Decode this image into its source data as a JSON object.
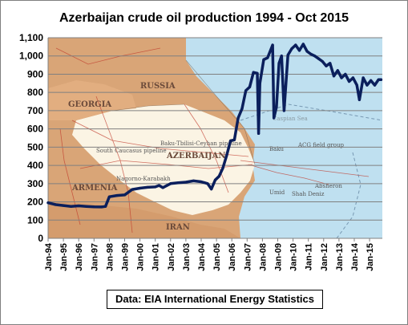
{
  "chart_data": {
    "type": "line",
    "title": "Azerbaijan crude oil production 1994 - Oct 2015",
    "xlabel": "",
    "ylabel": "",
    "ylim": [
      0,
      1100
    ],
    "yticks": [
      0,
      100,
      200,
      300,
      400,
      500,
      600,
      700,
      800,
      900,
      "1,000",
      "1,100"
    ],
    "xticks": [
      "Jan-94",
      "Jan-95",
      "Jan-96",
      "Jan-97",
      "Jan-98",
      "Jan-99",
      "Jan-00",
      "Jan-01",
      "Jan-02",
      "Jan-03",
      "Jan-04",
      "Jan-05",
      "Jan-06",
      "Jan-07",
      "Jan-08",
      "Jan-09",
      "Jan-10",
      "Jan-11",
      "Jan-12",
      "Jan-13",
      "Jan-14",
      "Jan-15"
    ],
    "grid": true,
    "series": [
      {
        "color": "#0b1f5c",
        "points": [
          [
            "1994-01",
            195
          ],
          [
            "1994-07",
            185
          ],
          [
            "1995-01",
            180
          ],
          [
            "1995-07",
            175
          ],
          [
            "1996-01",
            178
          ],
          [
            "1996-07",
            175
          ],
          [
            "1997-01",
            173
          ],
          [
            "1997-07",
            172
          ],
          [
            "1997-10",
            175
          ],
          [
            "1998-01",
            228
          ],
          [
            "1998-07",
            235
          ],
          [
            "1999-01",
            238
          ],
          [
            "1999-07",
            268
          ],
          [
            "2000-01",
            275
          ],
          [
            "2000-07",
            280
          ],
          [
            "2001-01",
            282
          ],
          [
            "2001-04",
            290
          ],
          [
            "2001-07",
            278
          ],
          [
            "2002-01",
            300
          ],
          [
            "2002-07",
            305
          ],
          [
            "2003-01",
            308
          ],
          [
            "2003-07",
            315
          ],
          [
            "2004-01",
            310
          ],
          [
            "2004-06",
            300
          ],
          [
            "2004-09",
            270
          ],
          [
            "2004-12",
            320
          ],
          [
            "2005-03",
            340
          ],
          [
            "2005-06",
            385
          ],
          [
            "2005-09",
            455
          ],
          [
            "2005-12",
            535
          ],
          [
            "2006-03",
            540
          ],
          [
            "2006-06",
            660
          ],
          [
            "2006-09",
            710
          ],
          [
            "2006-12",
            810
          ],
          [
            "2007-03",
            830
          ],
          [
            "2007-06",
            910
          ],
          [
            "2007-09",
            905
          ],
          [
            "2007-10",
            575
          ],
          [
            "2007-11",
            850
          ],
          [
            "2008-02",
            980
          ],
          [
            "2008-05",
            990
          ],
          [
            "2008-09",
            1060
          ],
          [
            "2008-10",
            660
          ],
          [
            "2008-12",
            720
          ],
          [
            "2009-02",
            960
          ],
          [
            "2009-04",
            1000
          ],
          [
            "2009-06",
            700
          ],
          [
            "2009-09",
            1005
          ],
          [
            "2009-12",
            1040
          ],
          [
            "2010-03",
            1060
          ],
          [
            "2010-06",
            1030
          ],
          [
            "2010-09",
            1065
          ],
          [
            "2010-12",
            1025
          ],
          [
            "2011-03",
            1010
          ],
          [
            "2011-06",
            1000
          ],
          [
            "2011-09",
            985
          ],
          [
            "2011-12",
            970
          ],
          [
            "2012-03",
            945
          ],
          [
            "2012-06",
            960
          ],
          [
            "2012-09",
            890
          ],
          [
            "2012-12",
            920
          ],
          [
            "2013-03",
            880
          ],
          [
            "2013-06",
            900
          ],
          [
            "2013-09",
            860
          ],
          [
            "2013-12",
            880
          ],
          [
            "2014-03",
            840
          ],
          [
            "2014-05",
            760
          ],
          [
            "2014-08",
            880
          ],
          [
            "2014-11",
            840
          ],
          [
            "2015-02",
            865
          ],
          [
            "2015-05",
            840
          ],
          [
            "2015-08",
            870
          ],
          [
            "2015-10",
            870
          ]
        ]
      }
    ]
  },
  "map": {
    "labels": [
      "RUSSIA",
      "GEORGIA",
      "ARMENIA",
      "AZERBAIJAN",
      "IRAN",
      "Nagorno-Karabakh",
      "Baku-Tbilisi-Ceyhan pipeline",
      "South Caucasus pipeline",
      "Baku",
      "ACG field group",
      "Absheron",
      "Umid",
      "Shah Deniz",
      "Caspian Sea"
    ]
  },
  "source": "Data: EIA International Energy Statistics"
}
